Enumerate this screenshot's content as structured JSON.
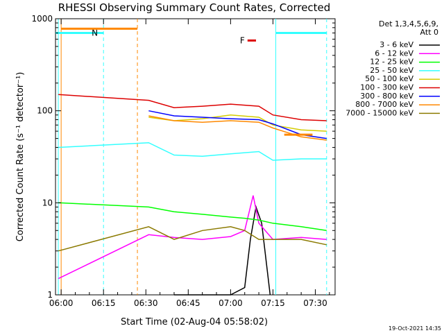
{
  "chart_data": {
    "type": "line",
    "title": "RHESSI Observing Summary Count Rates, Corrected",
    "xlabel": "Start Time (02-Aug-04 05:58:02)",
    "ylabel": "Corrected Count Rate (s⁻¹ detector⁻¹)",
    "y_scale": "log",
    "xlim": [
      "05:58",
      "07:37"
    ],
    "ylim": [
      1,
      1000
    ],
    "x_ticks": [
      "06:00",
      "06:15",
      "06:30",
      "06:45",
      "07:00",
      "07:15",
      "07:30"
    ],
    "y_ticks": [
      "1",
      "10",
      "100",
      "1000"
    ],
    "legend": {
      "placement": "right",
      "header_line1": "Det 1,3,4,5,6,9,",
      "header_line2": "Att 0",
      "entries": [
        {
          "label": "3 - 6 keV",
          "color": "#000000"
        },
        {
          "label": "6 - 12 keV",
          "color": "#ff00ff"
        },
        {
          "label": "12 - 25 keV",
          "color": "#00ff00"
        },
        {
          "label": "25 - 50 keV",
          "color": "#33ffff"
        },
        {
          "label": "50 - 100 keV",
          "color": "#d4cc00"
        },
        {
          "label": "100 - 300 keV",
          "color": "#dd0000"
        },
        {
          "label": "300 - 800 keV",
          "color": "#0000ff"
        },
        {
          "label": "800 - 7000 keV",
          "color": "#ff8800"
        },
        {
          "label": "7000 - 15000 keV",
          "color": "#8b7a00"
        }
      ]
    },
    "series": [
      {
        "name": "3 - 6 keV",
        "color": "#000000",
        "x": [
          "06:40",
          "06:50",
          "07:00",
          "07:05",
          "07:07",
          "07:09",
          "07:11",
          "07:14"
        ],
        "y": [
          1.0,
          1.0,
          1.0,
          1.2,
          4.0,
          9.0,
          6.0,
          1.0
        ]
      },
      {
        "name": "6 - 12 keV",
        "color": "#ff00ff",
        "x": [
          "05:59",
          "06:31",
          "06:40",
          "06:50",
          "07:00",
          "07:05",
          "07:08",
          "07:10",
          "07:15",
          "07:25",
          "07:34"
        ],
        "y": [
          1.5,
          4.5,
          4.2,
          4.0,
          4.3,
          5.0,
          12.0,
          6.0,
          4.0,
          4.2,
          4.0
        ]
      },
      {
        "name": "12 - 25 keV",
        "color": "#00ff00",
        "x": [
          "05:59",
          "06:31",
          "06:40",
          "06:50",
          "07:00",
          "07:05",
          "07:10",
          "07:15",
          "07:25",
          "07:34"
        ],
        "y": [
          10.0,
          9.0,
          8.0,
          7.5,
          7.0,
          6.8,
          6.5,
          6.0,
          5.5,
          5.0
        ]
      },
      {
        "name": "25 - 50 keV",
        "color": "#33ffff",
        "x": [
          "05:59",
          "06:31",
          "06:40",
          "06:50",
          "07:00",
          "07:10",
          "07:15",
          "07:25",
          "07:34"
        ],
        "y": [
          40.0,
          45.0,
          33.0,
          32.0,
          34.0,
          36.0,
          29.0,
          30.0,
          30.0
        ]
      },
      {
        "name": "50 - 100 keV",
        "color": "#d4cc00",
        "x": [
          "06:31",
          "06:40",
          "06:50",
          "07:00",
          "07:10",
          "07:15",
          "07:25",
          "07:34"
        ],
        "y": [
          85.0,
          78.0,
          82.0,
          90.0,
          85.0,
          70.0,
          62.0,
          60.0
        ]
      },
      {
        "name": "100 - 300 keV",
        "color": "#dd0000",
        "x": [
          "05:59",
          "06:31",
          "06:40",
          "06:50",
          "07:00",
          "07:10",
          "07:15",
          "07:25",
          "07:34"
        ],
        "y": [
          150.0,
          130.0,
          108.0,
          112.0,
          118.0,
          112.0,
          90.0,
          80.0,
          78.0
        ]
      },
      {
        "name": "300 - 800 keV",
        "color": "#0000ff",
        "x": [
          "06:31",
          "06:40",
          "06:50",
          "07:00",
          "07:10",
          "07:15",
          "07:25",
          "07:34"
        ],
        "y": [
          100.0,
          88.0,
          85.0,
          82.0,
          80.0,
          72.0,
          55.0,
          50.0
        ]
      },
      {
        "name": "800 - 7000 keV",
        "color": "#ff8800",
        "x": [
          "06:31",
          "06:40",
          "06:50",
          "07:00",
          "07:10",
          "07:15",
          "07:25",
          "07:34"
        ],
        "y": [
          88.0,
          78.0,
          75.0,
          78.0,
          75.0,
          65.0,
          52.0,
          48.0
        ]
      },
      {
        "name": "7000 - 15000 keV",
        "color": "#8b7a00",
        "x": [
          "05:59",
          "06:31",
          "06:40",
          "06:50",
          "07:00",
          "07:05",
          "07:10",
          "07:15",
          "07:25",
          "07:34"
        ],
        "y": [
          3.0,
          5.5,
          4.0,
          5.0,
          5.5,
          5.0,
          4.0,
          4.0,
          4.0,
          3.5
        ]
      }
    ],
    "flag_bars": [
      {
        "label": "",
        "color": "#33ffff",
        "x_start": "05:58",
        "x_end": "06:14",
        "y_level": 700
      },
      {
        "label": "N",
        "color": "#33ffff",
        "x_start": "06:14",
        "x_end": "06:15",
        "y_level": 700
      },
      {
        "label": "",
        "color": "#ff8800",
        "x_start": "06:00",
        "x_end": "06:27",
        "y_level": 780
      },
      {
        "label": "",
        "color": "#33ffff",
        "x_start": "07:16",
        "x_end": "07:34",
        "y_level": 700
      },
      {
        "label": "F",
        "color": "#dd0000",
        "x_start": "07:06",
        "x_end": "07:09",
        "y_level": 580
      },
      {
        "label": "",
        "color": "#ff8800",
        "x_start": "07:19",
        "x_end": "07:29",
        "y_level": 55
      }
    ],
    "vertical_markers": [
      {
        "x": "05:59",
        "color": "#33ffff",
        "style": "solid"
      },
      {
        "x": "06:00",
        "color": "#ff8800",
        "style": "solid"
      },
      {
        "x": "06:15",
        "color": "#33ffff",
        "style": "dashed"
      },
      {
        "x": "06:27",
        "color": "#ff8800",
        "style": "dashed"
      },
      {
        "x": "07:16",
        "color": "#33ffff",
        "style": "solid"
      },
      {
        "x": "07:34",
        "color": "#33ffff",
        "style": "dashed"
      }
    ],
    "grid": false
  },
  "footer": {
    "stamp": "19-Oct-2021 14:35"
  }
}
